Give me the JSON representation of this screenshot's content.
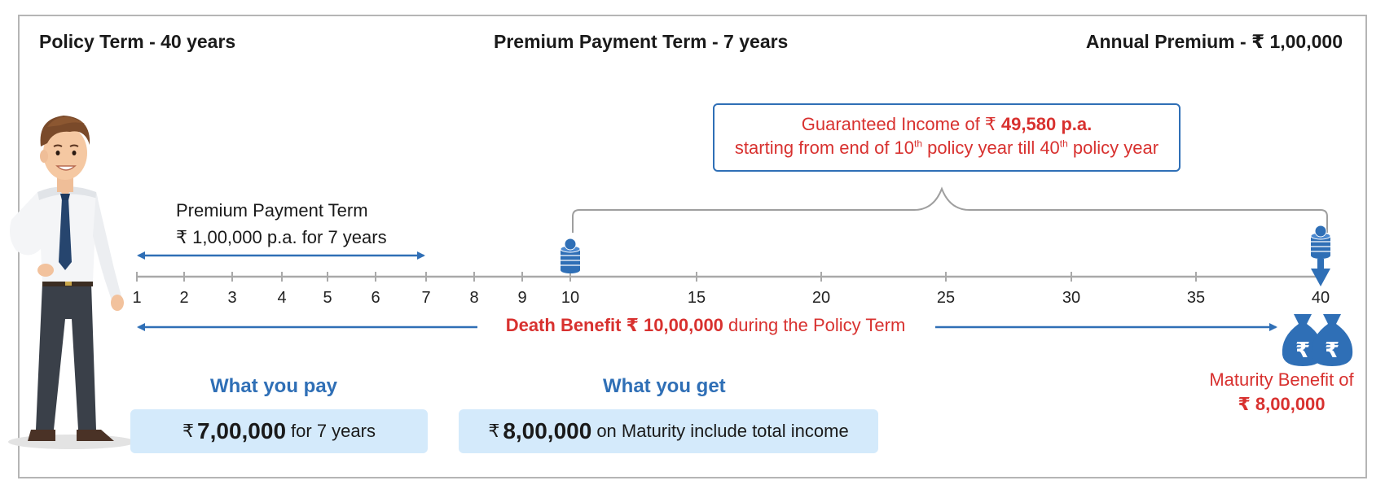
{
  "header": {
    "policy_term": "Policy Term - 40 years",
    "premium_payment_term": "Premium Payment Term - 7 years",
    "annual_premium": "Annual Premium - ₹ 1,00,000"
  },
  "income_box": {
    "line1_prefix": "Guaranteed Income of ₹",
    "line1_amount": "49,580 p.a.",
    "line2_part1": "starting from end of 10",
    "line2_sup1": "th",
    "line2_part2": " policy year till 40",
    "line2_sup2": "th",
    "line2_part3": " policy year"
  },
  "ppt": {
    "line1": "Premium Payment Term",
    "line2": "₹ 1,00,000 p.a. for 7 years"
  },
  "timeline": {
    "ticks": [
      "1",
      "2",
      "3",
      "4",
      "5",
      "6",
      "7",
      "8",
      "9",
      "10",
      "15",
      "20",
      "25",
      "30",
      "35",
      "40"
    ]
  },
  "death_benefit": {
    "bold": "Death Benefit",
    "amount": "₹ 10,00,000",
    "suffix": " during the Policy Term"
  },
  "maturity": {
    "line1": "Maturity Benefit of",
    "amount": "₹ 8,00,000"
  },
  "pay": {
    "title": "What you pay",
    "currency": "₹",
    "amount": "7,00,000",
    "suffix": "for 7 years"
  },
  "get": {
    "title": "What you get",
    "currency": "₹",
    "amount": "8,00,000",
    "suffix": "on Maturity include total income"
  },
  "colors": {
    "blue": "#2f6fb6",
    "red": "#d8312f",
    "light_blue": "#d4eafb",
    "axis_grey": "#a9a9a9"
  }
}
